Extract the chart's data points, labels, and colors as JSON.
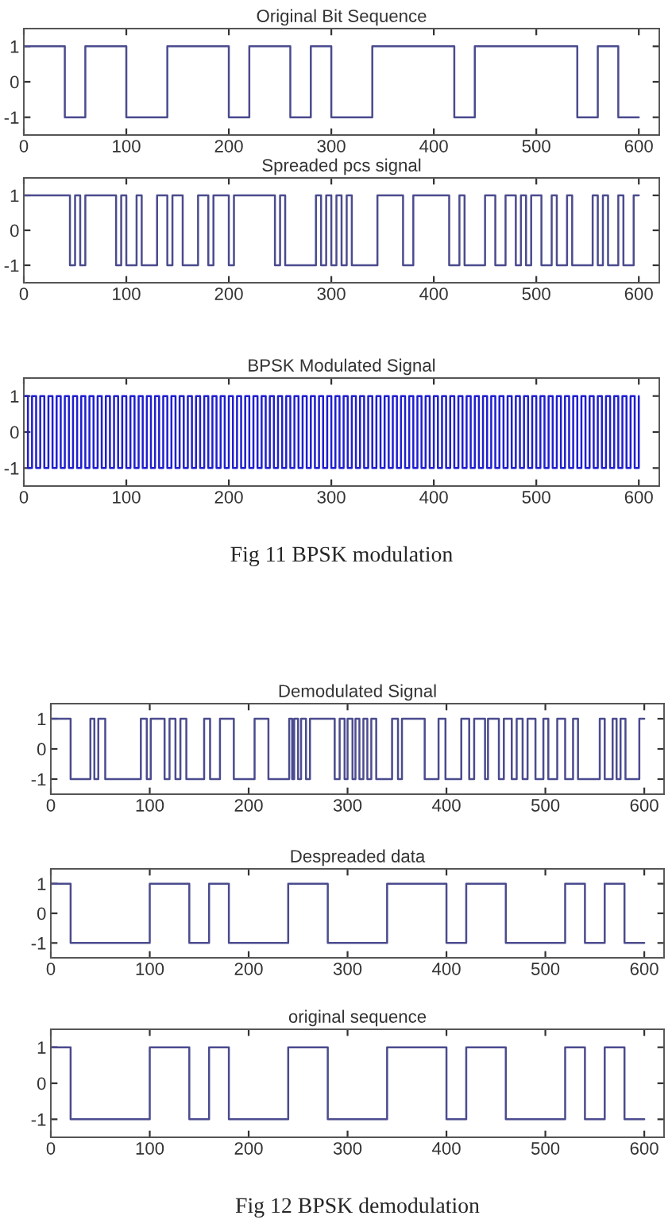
{
  "chart_data": [
    {
      "type": "step",
      "title": "Original Bit Sequence",
      "xlim": [
        0,
        620
      ],
      "ylim": [
        -1.5,
        1.5
      ],
      "xticks": [
        0,
        100,
        200,
        300,
        400,
        500,
        600
      ],
      "yticks": [
        -1,
        0,
        1
      ],
      "series": [
        {
          "color": "#4b4b8f",
          "x": [
            0,
            40,
            60,
            100,
            140,
            200,
            220,
            260,
            280,
            300,
            340,
            420,
            440,
            540,
            560,
            580,
            600
          ],
          "values": [
            1,
            -1,
            1,
            -1,
            1,
            -1,
            1,
            -1,
            1,
            -1,
            1,
            -1,
            1,
            -1,
            1,
            -1,
            -1
          ]
        }
      ]
    },
    {
      "type": "step",
      "title": "Spreaded pcs signal",
      "xlim": [
        0,
        620
      ],
      "ylim": [
        -1.5,
        1.5
      ],
      "xticks": [
        0,
        100,
        200,
        300,
        400,
        500,
        600
      ],
      "yticks": [
        -1,
        0,
        1
      ],
      "series": [
        {
          "color": "#4b4b8f",
          "x": [
            0,
            45,
            50,
            55,
            60,
            90,
            95,
            100,
            110,
            115,
            130,
            140,
            145,
            155,
            170,
            180,
            185,
            200,
            205,
            245,
            250,
            255,
            285,
            290,
            295,
            300,
            305,
            310,
            315,
            320,
            345,
            370,
            380,
            415,
            425,
            430,
            450,
            460,
            470,
            480,
            485,
            490,
            495,
            505,
            515,
            520,
            530,
            535,
            555,
            560,
            565,
            570,
            580,
            585,
            595,
            600
          ],
          "values": [
            1,
            -1,
            1,
            -1,
            1,
            -1,
            1,
            -1,
            1,
            -1,
            1,
            -1,
            1,
            -1,
            1,
            -1,
            1,
            -1,
            1,
            -1,
            1,
            -1,
            1,
            -1,
            1,
            -1,
            1,
            -1,
            1,
            -1,
            1,
            -1,
            1,
            -1,
            1,
            -1,
            1,
            -1,
            1,
            -1,
            1,
            -1,
            1,
            -1,
            1,
            -1,
            1,
            -1,
            1,
            -1,
            1,
            -1,
            1,
            -1,
            1,
            1
          ]
        }
      ]
    },
    {
      "type": "step",
      "title": "BPSK Modulated Signal",
      "xlim": [
        0,
        620
      ],
      "ylim": [
        -1.5,
        1.5
      ],
      "xticks": [
        0,
        100,
        200,
        300,
        400,
        500,
        600
      ],
      "yticks": [
        -1,
        0,
        1
      ],
      "annotations": [
        "Fig 11 BPSK modulation"
      ],
      "series": [
        {
          "color": "#1f1fd0",
          "x": [
            0,
            4,
            8,
            12,
            16,
            20,
            24,
            28,
            32,
            36,
            40,
            44,
            48,
            52,
            56,
            60,
            64,
            68,
            72,
            76,
            80,
            84,
            88,
            92,
            96,
            100,
            104,
            108,
            112,
            116,
            120,
            124,
            128,
            132,
            136,
            140,
            144,
            148,
            152,
            156,
            160,
            164,
            168,
            172,
            176,
            180,
            184,
            188,
            192,
            196,
            200,
            204,
            208,
            212,
            216,
            220,
            224,
            228,
            232,
            236,
            240,
            244,
            248,
            252,
            256,
            260,
            264,
            268,
            272,
            276,
            280,
            284,
            288,
            292,
            296,
            300,
            304,
            308,
            312,
            316,
            320,
            324,
            328,
            332,
            336,
            340,
            344,
            348,
            352,
            356,
            360,
            364,
            368,
            372,
            376,
            380,
            384,
            388,
            392,
            396,
            400,
            404,
            408,
            412,
            416,
            420,
            424,
            428,
            432,
            436,
            440,
            444,
            448,
            452,
            456,
            460,
            464,
            468,
            472,
            476,
            480,
            484,
            488,
            492,
            496,
            500,
            504,
            508,
            512,
            516,
            520,
            524,
            528,
            532,
            536,
            540,
            544,
            548,
            552,
            556,
            560,
            564,
            568,
            572,
            576,
            580,
            584,
            588,
            592,
            596,
            600
          ],
          "values": [
            1,
            -1,
            1,
            -1,
            1,
            -1,
            1,
            -1,
            1,
            -1,
            1,
            -1,
            1,
            -1,
            1,
            -1,
            1,
            -1,
            1,
            -1,
            1,
            -1,
            1,
            -1,
            1,
            -1,
            1,
            -1,
            1,
            -1,
            1,
            -1,
            1,
            -1,
            1,
            -1,
            1,
            -1,
            1,
            -1,
            1,
            -1,
            1,
            -1,
            1,
            -1,
            1,
            -1,
            1,
            -1,
            1,
            -1,
            1,
            -1,
            1,
            -1,
            1,
            -1,
            1,
            -1,
            1,
            -1,
            1,
            -1,
            1,
            -1,
            1,
            -1,
            1,
            -1,
            1,
            -1,
            1,
            -1,
            1,
            -1,
            1,
            -1,
            1,
            -1,
            1,
            -1,
            1,
            -1,
            1,
            -1,
            1,
            -1,
            1,
            -1,
            1,
            -1,
            1,
            -1,
            1,
            -1,
            1,
            -1,
            1,
            -1,
            1,
            -1,
            1,
            -1,
            1,
            -1,
            1,
            -1,
            1,
            -1,
            1,
            -1,
            1,
            -1,
            1,
            -1,
            1,
            -1,
            1,
            -1,
            1,
            -1,
            1,
            -1,
            1,
            -1,
            1,
            -1,
            1,
            -1,
            1,
            -1,
            1,
            -1,
            1,
            -1,
            1,
            -1,
            1,
            -1,
            1,
            -1,
            1,
            -1,
            1,
            -1,
            1,
            -1,
            1,
            -1,
            1
          ]
        }
      ]
    },
    {
      "type": "step",
      "title": "Demodulated Signal",
      "xlim": [
        0,
        620
      ],
      "ylim": [
        -1.5,
        1.5
      ],
      "xticks": [
        0,
        100,
        200,
        300,
        400,
        500,
        600
      ],
      "yticks": [
        -1,
        0,
        1
      ],
      "series": [
        {
          "color": "#4b4b8f",
          "x": [
            0,
            20,
            40,
            44,
            48,
            55,
            91,
            97,
            101,
            115,
            120,
            126,
            131,
            137,
            155,
            161,
            171,
            185,
            206,
            220,
            241,
            244,
            246,
            250,
            253,
            258,
            262,
            287,
            292,
            297,
            300,
            305,
            308,
            312,
            316,
            320,
            324,
            329,
            345,
            351,
            355,
            378,
            392,
            399,
            415,
            423,
            428,
            439,
            442,
            453,
            458,
            466,
            471,
            477,
            482,
            490,
            498,
            503,
            512,
            520,
            528,
            533,
            555,
            560,
            568,
            572,
            576,
            581,
            595,
            600
          ],
          "values": [
            1,
            -1,
            1,
            -1,
            1,
            -1,
            1,
            -1,
            1,
            -1,
            1,
            -1,
            1,
            -1,
            1,
            -1,
            1,
            -1,
            1,
            -1,
            1,
            -1,
            1,
            -1,
            1,
            -1,
            1,
            -1,
            1,
            -1,
            1,
            -1,
            1,
            -1,
            1,
            -1,
            1,
            -1,
            1,
            -1,
            1,
            -1,
            1,
            -1,
            1,
            -1,
            1,
            -1,
            1,
            -1,
            1,
            -1,
            1,
            -1,
            1,
            -1,
            1,
            -1,
            1,
            -1,
            1,
            -1,
            1,
            -1,
            1,
            -1,
            1,
            -1,
            1,
            1
          ]
        }
      ]
    },
    {
      "type": "step",
      "title": "Despreaded data",
      "xlim": [
        0,
        620
      ],
      "ylim": [
        -1.5,
        1.5
      ],
      "xticks": [
        0,
        100,
        200,
        300,
        400,
        500,
        600
      ],
      "yticks": [
        -1,
        0,
        1
      ],
      "series": [
        {
          "color": "#4b4b8f",
          "x": [
            0,
            20,
            100,
            140,
            160,
            180,
            240,
            280,
            340,
            400,
            420,
            460,
            520,
            540,
            560,
            580,
            600
          ],
          "values": [
            1,
            -1,
            1,
            -1,
            1,
            -1,
            1,
            -1,
            1,
            -1,
            1,
            -1,
            1,
            -1,
            1,
            -1,
            -1
          ]
        }
      ]
    },
    {
      "type": "step",
      "title": "original sequence",
      "xlim": [
        0,
        620
      ],
      "ylim": [
        -1.5,
        1.5
      ],
      "xticks": [
        0,
        100,
        200,
        300,
        400,
        500,
        600
      ],
      "yticks": [
        -1,
        0,
        1
      ],
      "annotations": [
        "Fig 12 BPSK demodulation"
      ],
      "series": [
        {
          "color": "#4b4b8f",
          "x": [
            0,
            20,
            100,
            140,
            160,
            180,
            240,
            280,
            340,
            400,
            420,
            460,
            520,
            540,
            560,
            580,
            600
          ],
          "values": [
            1,
            -1,
            1,
            -1,
            1,
            -1,
            1,
            -1,
            1,
            -1,
            1,
            -1,
            1,
            -1,
            1,
            -1,
            -1
          ]
        }
      ]
    }
  ]
}
